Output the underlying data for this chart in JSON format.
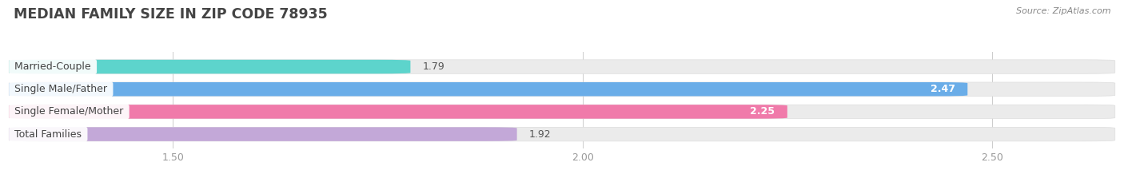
{
  "title": "MEDIAN FAMILY SIZE IN ZIP CODE 78935",
  "source": "Source: ZipAtlas.com",
  "categories": [
    "Married-Couple",
    "Single Male/Father",
    "Single Female/Mother",
    "Total Families"
  ],
  "values": [
    1.79,
    2.47,
    2.25,
    1.92
  ],
  "bar_colors": [
    "#5dd4cc",
    "#6aade8",
    "#f07aaa",
    "#c3a8d8"
  ],
  "bar_bg_colors": [
    "#ebebeb",
    "#ebebeb",
    "#ebebeb",
    "#ebebeb"
  ],
  "value_colors": [
    "#555555",
    "#ffffff",
    "#ffffff",
    "#555555"
  ],
  "xlim_left": 1.3,
  "xlim_right": 2.65,
  "xticks": [
    1.5,
    2.0,
    2.5
  ],
  "background_color": "#ffffff",
  "bar_height": 0.62,
  "bar_gap": 0.38,
  "label_fontsize": 9.0,
  "value_fontsize": 9.0,
  "title_fontsize": 12.5
}
